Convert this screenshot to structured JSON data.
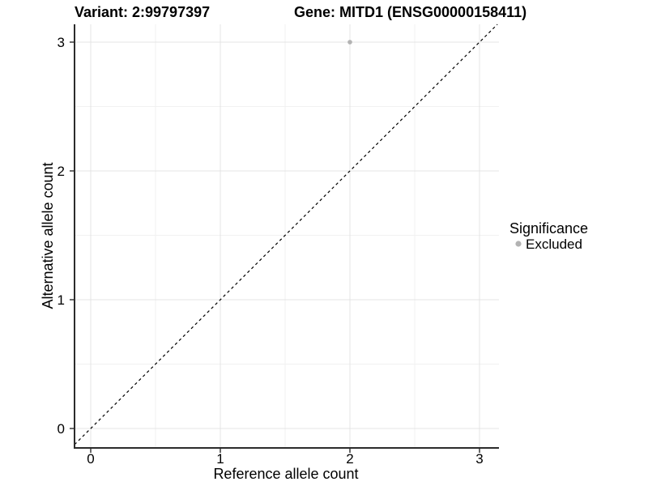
{
  "window": {
    "title_left": "Variant: 2:99797397",
    "title_right": "Gene: MITD1 (ENSG00000158411)"
  },
  "chart_data": {
    "type": "scatter",
    "title_left": "Variant: 2:99797397",
    "title_right": "Gene: MITD1 (ENSG00000158411)",
    "xlabel": "Reference allele count",
    "ylabel": "Alternative allele count",
    "xlim": [
      -0.125,
      3.15
    ],
    "ylim": [
      -0.151,
      3.138
    ],
    "x_ticks": [
      0,
      1,
      2,
      3
    ],
    "y_ticks": [
      0,
      1,
      2,
      3
    ],
    "x_minor_ticks": [
      0.5,
      1.5,
      2.5
    ],
    "y_minor_ticks": [
      0.5,
      1.5,
      2.5
    ],
    "grid": true,
    "series": [
      {
        "name": "Excluded",
        "color": "#b3b3b3",
        "point_radius": 2.8,
        "points": [
          {
            "x": 2,
            "y": 3
          }
        ]
      }
    ],
    "abline": {
      "slope": 1,
      "intercept": 0,
      "style": "dashed",
      "color": "#000000"
    },
    "legend": {
      "position": "right",
      "title": "Significance",
      "entries": [
        {
          "label": "Excluded",
          "color": "#b3b3b3",
          "key_radius": 3.6
        }
      ]
    }
  },
  "colors": {
    "background": "#ffffff",
    "point": "#b3b3b3",
    "axis_line": "#2b2b2b",
    "grid_major": "#e4e4e4",
    "grid_minor": "#f1f1f1",
    "text": "#000000"
  }
}
